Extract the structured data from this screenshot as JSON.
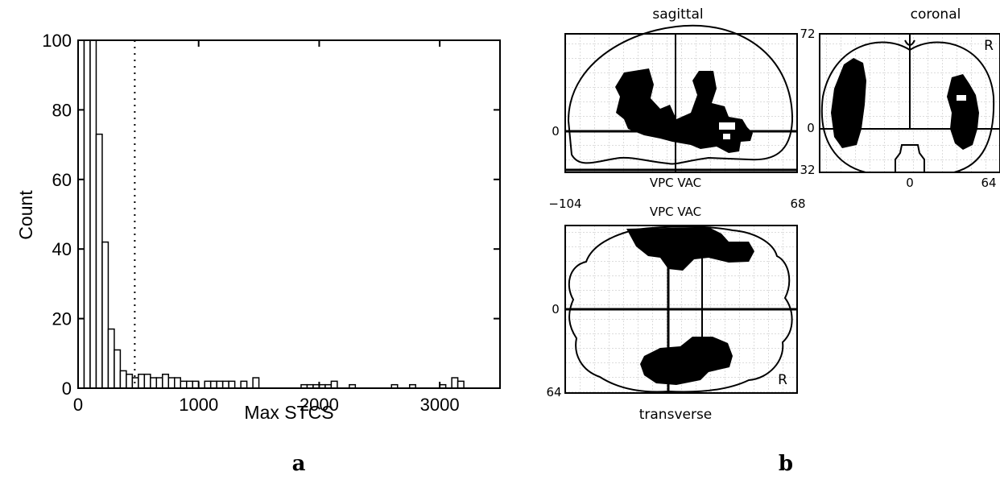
{
  "chart_data": [
    {
      "type": "bar",
      "panel_label": "a",
      "xlabel": "Max STCS",
      "ylabel": "Count",
      "xlim": [
        0,
        3500
      ],
      "ylim": [
        0,
        100
      ],
      "bin_width": 50,
      "xticks": [
        "0",
        "1000",
        "2000",
        "3000"
      ],
      "yticks": [
        "0",
        "20",
        "40",
        "60",
        "80",
        "100"
      ],
      "threshold_line_x": 470,
      "threshold_style": "dotted",
      "bins": [
        {
          "x": 0,
          "value": 100
        },
        {
          "x": 50,
          "value": 100
        },
        {
          "x": 100,
          "value": 100
        },
        {
          "x": 150,
          "value": 73
        },
        {
          "x": 200,
          "value": 42
        },
        {
          "x": 250,
          "value": 17
        },
        {
          "x": 300,
          "value": 11
        },
        {
          "x": 350,
          "value": 5
        },
        {
          "x": 400,
          "value": 4
        },
        {
          "x": 450,
          "value": 3
        },
        {
          "x": 500,
          "value": 4
        },
        {
          "x": 550,
          "value": 4
        },
        {
          "x": 600,
          "value": 3
        },
        {
          "x": 650,
          "value": 3
        },
        {
          "x": 700,
          "value": 4
        },
        {
          "x": 750,
          "value": 3
        },
        {
          "x": 800,
          "value": 3
        },
        {
          "x": 850,
          "value": 2
        },
        {
          "x": 900,
          "value": 2
        },
        {
          "x": 950,
          "value": 2
        },
        {
          "x": 1050,
          "value": 2
        },
        {
          "x": 1100,
          "value": 2
        },
        {
          "x": 1150,
          "value": 2
        },
        {
          "x": 1200,
          "value": 2
        },
        {
          "x": 1250,
          "value": 2
        },
        {
          "x": 1350,
          "value": 2
        },
        {
          "x": 1450,
          "value": 3
        },
        {
          "x": 1850,
          "value": 1
        },
        {
          "x": 1900,
          "value": 1
        },
        {
          "x": 1950,
          "value": 1
        },
        {
          "x": 2000,
          "value": 1
        },
        {
          "x": 2050,
          "value": 1
        },
        {
          "x": 2100,
          "value": 2
        },
        {
          "x": 2250,
          "value": 1
        },
        {
          "x": 2600,
          "value": 1
        },
        {
          "x": 2750,
          "value": 1
        },
        {
          "x": 3000,
          "value": 1
        },
        {
          "x": 3100,
          "value": 3
        },
        {
          "x": 3150,
          "value": 2
        }
      ]
    }
  ],
  "panel_b": {
    "panel_label": "b",
    "sagittal": {
      "title": "sagittal",
      "top_label": "72",
      "zero_label": "0",
      "bottom_label": "32",
      "sub_label": "VPC VAC",
      "x_left": "−104",
      "x_right": "68"
    },
    "coronal": {
      "title": "coronal",
      "r_label": "R",
      "zero_label": "0",
      "x_zero": "0",
      "x_right": "64"
    },
    "transverse": {
      "title": "transverse",
      "top_label": "VPC VAC",
      "zero_label": "0",
      "bottom_label": "64",
      "r_label": "R"
    }
  }
}
